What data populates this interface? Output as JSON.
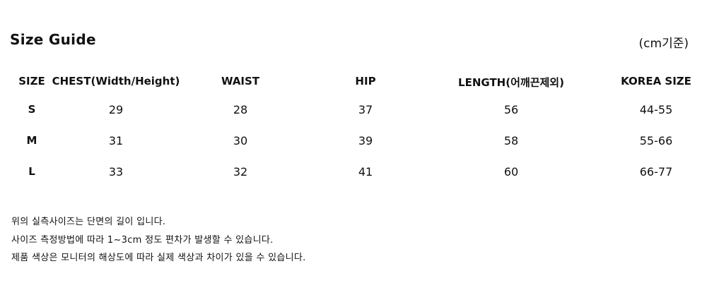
{
  "title": "Size Guide",
  "unit_note": "(cm기준)",
  "table": {
    "headers": [
      "SIZE",
      "CHEST(Width/Height)",
      "WAIST",
      "HIP",
      "LENGTH(어깨끈제외)",
      "KOREA SIZE"
    ],
    "rows": [
      [
        "S",
        "29",
        "28",
        "37",
        "56",
        "44-55"
      ],
      [
        "M",
        "31",
        "30",
        "39",
        "58",
        "55-66"
      ],
      [
        "L",
        "33",
        "32",
        "41",
        "60",
        "66-77"
      ]
    ]
  },
  "notes": [
    "위의 실측사이즈는 단면의 길이 입니다.",
    "사이즈 측정방법에 따라 1~3cm 정도 편차가 발생할 수 있습니다.",
    "제품 색상은 모니터의 해상도에 따라 실제 색상과 차이가 있을 수 있습니다."
  ]
}
